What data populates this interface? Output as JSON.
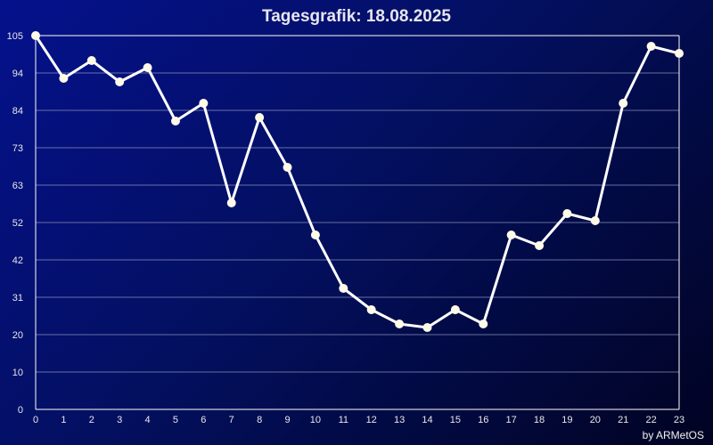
{
  "chart_data": {
    "type": "line",
    "title": "Tagesgrafik: 18.08.2025",
    "credit": "by ARMetOS",
    "colors": {
      "line": "#ffffff",
      "marker": "#fdfae8",
      "grid": "#8a8fb8",
      "axis": "#ffffff"
    },
    "ylim": [
      0,
      105
    ],
    "yticks": [
      "0",
      "10",
      "20",
      "31",
      "42",
      "52",
      "63",
      "73",
      "84",
      "94",
      "105"
    ],
    "x": [
      0,
      1,
      2,
      3,
      4,
      5,
      6,
      7,
      8,
      9,
      10,
      11,
      12,
      13,
      14,
      15,
      16,
      17,
      18,
      19,
      20,
      21,
      22,
      23
    ],
    "series": [
      {
        "values": [
          105,
          93,
          98,
          92,
          96,
          81,
          86,
          58,
          82,
          68,
          49,
          34,
          28,
          24,
          23,
          28,
          24,
          49,
          46,
          55,
          53,
          86,
          102,
          100
        ]
      }
    ],
    "grid": true
  }
}
